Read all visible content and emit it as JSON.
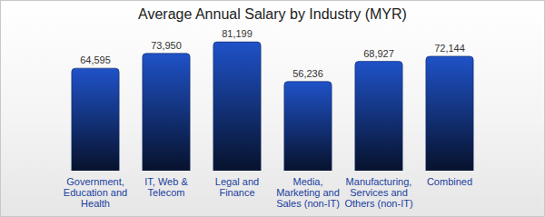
{
  "chart_data": {
    "type": "bar",
    "title": "Average Annual Salary by Industry (MYR)",
    "categories": [
      "Government, Education and Health",
      "IT, Web & Telecom",
      "Legal and Finance",
      "Media, Marketing and Sales (non-IT)",
      "Manufacturing, Services and Others (non-IT)",
      "Combined"
    ],
    "values": [
      64595,
      73950,
      81199,
      56236,
      68927,
      72144
    ],
    "value_labels": [
      "64,595",
      "73,950",
      "81,199",
      "56,236",
      "68,927",
      "72,144"
    ],
    "color": "#1f52c8",
    "ylim": [
      0,
      95000
    ],
    "data_labels": true,
    "tick_labels": "x",
    "grid": false
  }
}
